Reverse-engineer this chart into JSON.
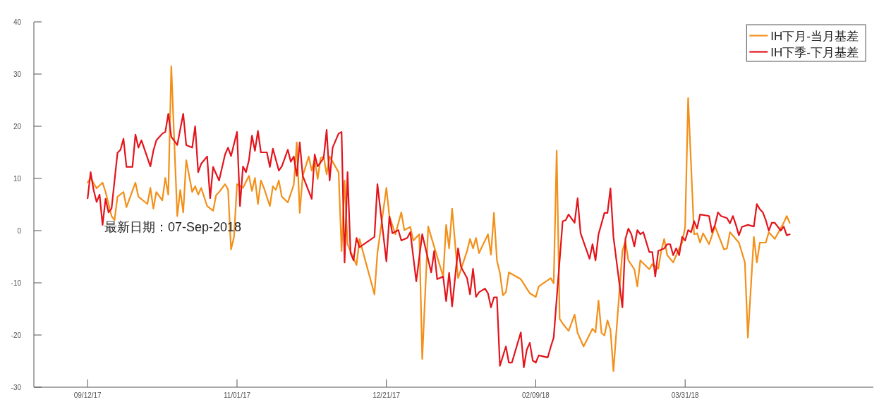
{
  "chart_data": {
    "type": "line",
    "xlim": [
      "2017-08-25",
      "2018-06-02"
    ],
    "xticks": [
      {
        "value": "2017-09-12",
        "label": "09/12/17"
      },
      {
        "value": "2017-11-01",
        "label": "11/01/17"
      },
      {
        "value": "2017-12-21",
        "label": "12/21/17"
      },
      {
        "value": "2018-02-09",
        "label": "02/09/18"
      },
      {
        "value": "2018-03-31",
        "label": "03/31/18"
      }
    ],
    "ylim": [
      -30,
      40
    ],
    "yticks": [
      -30,
      -20,
      -10,
      0,
      10,
      20,
      30,
      40
    ],
    "legend": "top right",
    "annotations": [
      "最新日期：07-Sep-2018"
    ],
    "series": [
      {
        "name": "IH下月-当月基差",
        "color": "#f39019",
        "x": [
          "2017-09-12",
          "2017-09-13",
          "2017-09-15",
          "2017-09-17",
          "2017-09-18",
          "2017-09-20",
          "2017-09-21",
          "2017-09-22",
          "2017-09-24",
          "2017-09-25",
          "2017-09-28",
          "2017-09-29",
          "2017-10-02",
          "2017-10-03",
          "2017-10-04",
          "2017-10-05",
          "2017-10-07",
          "2017-10-08",
          "2017-10-09",
          "2017-10-10",
          "2017-10-12",
          "2017-10-13",
          "2017-10-14",
          "2017-10-15",
          "2017-10-17",
          "2017-10-18",
          "2017-10-19",
          "2017-10-20",
          "2017-10-22",
          "2017-10-24",
          "2017-10-25",
          "2017-10-26",
          "2017-10-28",
          "2017-10-29",
          "2017-10-30",
          "2017-10-31",
          "2017-11-01",
          "2017-11-03",
          "2017-11-05",
          "2017-11-06",
          "2017-11-07",
          "2017-11-08",
          "2017-11-09",
          "2017-11-10",
          "2017-11-12",
          "2017-11-13",
          "2017-11-14",
          "2017-11-15",
          "2017-11-16",
          "2017-11-18",
          "2017-11-20",
          "2017-11-21",
          "2017-11-22",
          "2017-11-23",
          "2017-11-25",
          "2017-11-26",
          "2017-11-27",
          "2017-11-28",
          "2017-11-29",
          "2017-11-30",
          "2017-12-01",
          "2017-12-02",
          "2017-12-05",
          "2017-12-06",
          "2017-12-07",
          "2017-12-08",
          "2017-12-11",
          "2017-12-12",
          "2017-12-17",
          "2017-12-18",
          "2017-12-21",
          "2017-12-22",
          "2017-12-24",
          "2017-12-26",
          "2017-12-27",
          "2017-12-29",
          "2017-12-30",
          "2018-01-01",
          "2018-01-02",
          "2018-01-04",
          "2018-01-05",
          "2018-01-09",
          "2018-01-10",
          "2018-01-11",
          "2018-01-12",
          "2018-01-14",
          "2018-01-17",
          "2018-01-18",
          "2018-01-19",
          "2018-01-20",
          "2018-01-21",
          "2018-01-24",
          "2018-01-25",
          "2018-01-26",
          "2018-01-27",
          "2018-01-28",
          "2018-01-29",
          "2018-01-30",
          "2018-01-31",
          "2018-02-04",
          "2018-02-07",
          "2018-02-09",
          "2018-02-10",
          "2018-02-14",
          "2018-02-15",
          "2018-02-16",
          "2018-02-17",
          "2018-02-18",
          "2018-02-20",
          "2018-02-22",
          "2018-02-23",
          "2018-02-25",
          "2018-02-28",
          "2018-03-01",
          "2018-03-02",
          "2018-03-03",
          "2018-03-04",
          "2018-03-05",
          "2018-03-06",
          "2018-03-07",
          "2018-03-10",
          "2018-03-11",
          "2018-03-12",
          "2018-03-14",
          "2018-03-15",
          "2018-03-16",
          "2018-03-19",
          "2018-03-20",
          "2018-03-22",
          "2018-03-23",
          "2018-03-24",
          "2018-03-25",
          "2018-03-27",
          "2018-03-29",
          "2018-03-30",
          "2018-03-31",
          "2018-04-01",
          "2018-04-03",
          "2018-04-04",
          "2018-04-05",
          "2018-04-06",
          "2018-04-08",
          "2018-04-10",
          "2018-04-13",
          "2018-04-14",
          "2018-04-15",
          "2018-04-18",
          "2018-04-20",
          "2018-04-21",
          "2018-04-23",
          "2018-04-24",
          "2018-04-25",
          "2018-04-27",
          "2018-04-28",
          "2018-04-30",
          "2018-05-03",
          "2018-05-04",
          "2018-05-05"
        ],
        "values": [
          9.2,
          10.1,
          8.1,
          9.2,
          7.4,
          2.8,
          2.0,
          6.5,
          7.4,
          4.5,
          9.2,
          6.5,
          5.1,
          8.2,
          4.2,
          7.4,
          5.8,
          10.1,
          6.9,
          31.5,
          2.8,
          7.8,
          3.5,
          13.5,
          7.4,
          8.5,
          6.9,
          8.2,
          4.7,
          3.8,
          6.8,
          7.4,
          8.9,
          7.9,
          -3.6,
          -1.2,
          8.9,
          8.2,
          10.5,
          7.6,
          10.1,
          5.1,
          9.6,
          8.2,
          4.7,
          8.5,
          7.8,
          9.6,
          6.5,
          5.4,
          8.8,
          16.9,
          3.4,
          10.5,
          14.2,
          11.5,
          13.6,
          9.9,
          13.9,
          14.2,
          10.8,
          14.2,
          11.2,
          -3.9,
          9.6,
          -2.6,
          -6.6,
          -1.6,
          -12.2,
          -4.3,
          8.2,
          2.8,
          -0.7,
          3.5,
          0.1,
          0.7,
          -1.9,
          -0.7,
          -24.6,
          0.8,
          -1.2,
          -8.8,
          1.1,
          -3.4,
          4.2,
          -9.1,
          -3.9,
          -1.6,
          -3.4,
          -1.4,
          -4.3,
          -0.7,
          -4.6,
          3.4,
          -5.7,
          -8.1,
          -12.4,
          -11.8,
          -8.0,
          -9.3,
          -12.0,
          -12.7,
          -10.7,
          -9.1,
          -10.1,
          15.3,
          -16.9,
          -17.8,
          -19.2,
          -16.1,
          -19.6,
          -22.2,
          -18.8,
          -19.5,
          -13.4,
          -19.6,
          -20.1,
          -17.2,
          -19.0,
          -26.9,
          -3.9,
          -2.0,
          -5.7,
          -7.4,
          -10.7,
          -5.7,
          -7.4,
          -6.4,
          -7.3,
          -3.9,
          -1.6,
          -4.7,
          -6.1,
          -3.4,
          -2.3,
          0.7,
          25.4,
          -0.7,
          -0.5,
          -2.3,
          -0.5,
          -2.6,
          0.8,
          -3.6,
          -3.4,
          -0.3,
          -2.3,
          -6.1,
          -20.5,
          -1.2,
          -6.1,
          -2.3,
          -2.3,
          -0.3,
          -1.6,
          1.5,
          2.8,
          1.5
        ]
      },
      {
        "name": "IH下季-下月基差",
        "color": "#e3141c",
        "x": [
          "2017-09-12",
          "2017-09-13",
          "2017-09-14",
          "2017-09-15",
          "2017-09-16",
          "2017-09-17",
          "2017-09-18",
          "2017-09-19",
          "2017-09-20",
          "2017-09-22",
          "2017-09-23",
          "2017-09-24",
          "2017-09-25",
          "2017-09-27",
          "2017-09-28",
          "2017-09-29",
          "2017-09-30",
          "2017-10-03",
          "2017-10-04",
          "2017-10-05",
          "2017-10-07",
          "2017-10-08",
          "2017-10-09",
          "2017-10-10",
          "2017-10-12",
          "2017-10-14",
          "2017-10-15",
          "2017-10-17",
          "2017-10-18",
          "2017-10-19",
          "2017-10-20",
          "2017-10-22",
          "2017-10-23",
          "2017-10-24",
          "2017-10-26",
          "2017-10-28",
          "2017-10-29",
          "2017-10-30",
          "2017-11-01",
          "2017-11-02",
          "2017-11-03",
          "2017-11-04",
          "2017-11-05",
          "2017-11-06",
          "2017-11-07",
          "2017-11-08",
          "2017-11-09",
          "2017-11-11",
          "2017-11-12",
          "2017-11-13",
          "2017-11-15",
          "2017-11-16",
          "2017-11-18",
          "2017-11-19",
          "2017-11-20",
          "2017-11-21",
          "2017-11-22",
          "2017-11-23",
          "2017-11-26",
          "2017-11-27",
          "2017-11-28",
          "2017-11-30",
          "2017-12-01",
          "2017-12-02",
          "2017-12-03",
          "2017-12-05",
          "2017-12-06",
          "2017-12-07",
          "2017-12-08",
          "2017-12-09",
          "2017-12-10",
          "2017-12-11",
          "2017-12-12",
          "2017-12-17",
          "2017-12-18",
          "2017-12-21",
          "2017-12-22",
          "2017-12-23",
          "2017-12-25",
          "2017-12-26",
          "2017-12-28",
          "2017-12-29",
          "2017-12-31",
          "2018-01-02",
          "2018-01-05",
          "2018-01-06",
          "2018-01-07",
          "2018-01-09",
          "2018-01-10",
          "2018-01-11",
          "2018-01-12",
          "2018-01-14",
          "2018-01-15",
          "2018-01-17",
          "2018-01-18",
          "2018-01-19",
          "2018-01-20",
          "2018-01-21",
          "2018-01-23",
          "2018-01-24",
          "2018-01-25",
          "2018-01-26",
          "2018-01-27",
          "2018-01-28",
          "2018-01-30",
          "2018-01-31",
          "2018-02-01",
          "2018-02-04",
          "2018-02-05",
          "2018-02-06",
          "2018-02-07",
          "2018-02-08",
          "2018-02-09",
          "2018-02-10",
          "2018-02-13",
          "2018-02-14",
          "2018-02-15",
          "2018-02-18",
          "2018-02-19",
          "2018-02-20",
          "2018-02-22",
          "2018-02-23",
          "2018-02-24",
          "2018-02-27",
          "2018-02-28",
          "2018-03-01",
          "2018-03-02",
          "2018-03-04",
          "2018-03-05",
          "2018-03-06",
          "2018-03-07",
          "2018-03-10",
          "2018-03-11",
          "2018-03-12",
          "2018-03-13",
          "2018-03-14",
          "2018-03-15",
          "2018-03-16",
          "2018-03-17",
          "2018-03-19",
          "2018-03-20",
          "2018-03-21",
          "2018-03-22",
          "2018-03-24",
          "2018-03-25",
          "2018-03-26",
          "2018-03-27",
          "2018-03-28",
          "2018-03-29",
          "2018-03-30",
          "2018-03-31",
          "2018-04-01",
          "2018-04-02",
          "2018-04-03",
          "2018-04-04",
          "2018-04-05",
          "2018-04-08",
          "2018-04-09",
          "2018-04-10",
          "2018-04-11",
          "2018-04-12",
          "2018-04-14",
          "2018-04-15",
          "2018-04-16",
          "2018-04-17",
          "2018-04-18",
          "2018-04-19",
          "2018-04-21",
          "2018-04-23",
          "2018-04-24",
          "2018-04-25",
          "2018-04-26",
          "2018-04-27",
          "2018-04-28",
          "2018-04-29",
          "2018-04-30",
          "2018-05-02",
          "2018-05-03",
          "2018-05-04",
          "2018-05-05"
        ],
        "values": [
          6.2,
          11.2,
          7.8,
          5.5,
          6.9,
          1.1,
          6.1,
          3.5,
          4.2,
          14.9,
          15.5,
          17.6,
          12.2,
          12.2,
          18.4,
          15.9,
          17.3,
          12.3,
          15.3,
          17.3,
          18.6,
          18.9,
          22.4,
          18.0,
          16.4,
          22.4,
          16.4,
          15.9,
          20.0,
          11.2,
          12.8,
          14.2,
          6.2,
          12.2,
          9.6,
          14.6,
          15.9,
          14.3,
          18.9,
          4.7,
          12.3,
          11.2,
          13.5,
          18.2,
          15.3,
          19.1,
          15.0,
          15.0,
          12.2,
          15.7,
          11.5,
          12.3,
          15.5,
          13.2,
          14.2,
          10.5,
          16.9,
          10.5,
          6.1,
          14.6,
          12.3,
          13.9,
          19.3,
          9.6,
          15.9,
          18.6,
          18.9,
          -6.1,
          11.2,
          -4.3,
          -5.7,
          -1.4,
          -3.2,
          -1.2,
          8.9,
          -5.9,
          2.7,
          -0.5,
          0.1,
          -1.9,
          -1.4,
          -0.3,
          -9.7,
          -0.7,
          -8.0,
          -3.9,
          -9.3,
          -8.8,
          -13.5,
          -8.1,
          -14.5,
          -3.4,
          -7.0,
          -9.1,
          -12.2,
          -7.3,
          -12.7,
          -11.8,
          -11.1,
          -12.0,
          -14.7,
          -12.8,
          -12.8,
          -25.9,
          -22.2,
          -25.3,
          -25.3,
          -19.5,
          -26.2,
          -22.8,
          -21.5,
          -24.9,
          -25.3,
          -23.9,
          -24.3,
          -22.3,
          -20.5,
          1.8,
          2.0,
          3.1,
          1.5,
          6.2,
          -0.5,
          -5.4,
          -2.6,
          -5.7,
          -0.7,
          3.4,
          3.4,
          8.1,
          -1.2,
          -14.7,
          -1.6,
          0.4,
          -0.7,
          -3.0,
          0.1,
          -0.7,
          -0.3,
          -4.1,
          -4.1,
          -8.8,
          -3.9,
          -3.4,
          -2.6,
          -2.6,
          -4.7,
          -3.4,
          -4.7,
          -1.2,
          -1.9,
          0.1,
          -0.3,
          1.8,
          0.4,
          3.1,
          2.8,
          -0.3,
          1.1,
          3.5,
          2.8,
          2.4,
          1.4,
          2.8,
          1.1,
          -0.9,
          0.7,
          1.1,
          0.8,
          5.1,
          4.1,
          3.5,
          2.0,
          0.0,
          1.5,
          1.5,
          0.0,
          0.8,
          -0.9,
          -0.7
        ]
      }
    ]
  }
}
